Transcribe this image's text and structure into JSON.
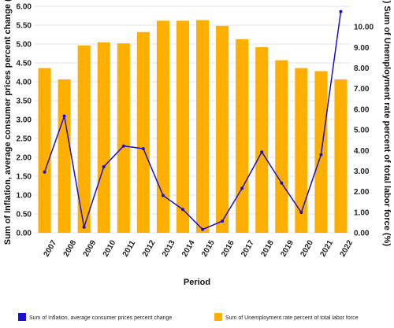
{
  "chart_data": {
    "type": "bar",
    "categories": [
      "2007",
      "2008",
      "2009",
      "2010",
      "2011",
      "2012",
      "2013",
      "2014",
      "2015",
      "2016",
      "2017",
      "2018",
      "2019",
      "2020",
      "2021",
      "2022"
    ],
    "series": [
      {
        "name": "Sum of Unemployment rate percent of total labor force",
        "type": "bar",
        "axis": "y2",
        "color": "#FFAF00",
        "values": [
          8.0,
          7.45,
          9.1,
          9.25,
          9.2,
          9.75,
          10.3,
          10.3,
          10.33,
          10.05,
          9.4,
          9.02,
          8.38,
          8.0,
          7.85,
          7.45
        ]
      },
      {
        "name": "Sum of Inflation, average consumer prices percent change",
        "type": "line",
        "axis": "y1",
        "color": "#1A0FD6",
        "values": [
          1.61,
          3.09,
          0.15,
          1.75,
          2.3,
          2.23,
          0.99,
          0.62,
          0.09,
          0.31,
          1.18,
          2.14,
          1.32,
          0.54,
          2.07,
          5.86
        ]
      }
    ],
    "xlabel": "Period",
    "ylabel": "Sum of Inflation, average consumer prices percent change (%)",
    "y2label": "(ZY) Sum of Unemployment rate percent of total labor force (%)",
    "ylim": [
      0,
      6
    ],
    "y2lim": [
      0,
      11
    ],
    "yticks": [
      "0.00",
      "0.50",
      "1.00",
      "1.50",
      "2.00",
      "2.50",
      "3.00",
      "3.50",
      "4.00",
      "4.50",
      "5.00",
      "5.50",
      "6.00"
    ],
    "y2ticks": [
      "0.00",
      "1.00",
      "2.00",
      "3.00",
      "4.00",
      "5.00",
      "6.00",
      "7.00",
      "8.00",
      "9.00",
      "10.00"
    ],
    "grid": true,
    "legend_position": "bottom"
  }
}
